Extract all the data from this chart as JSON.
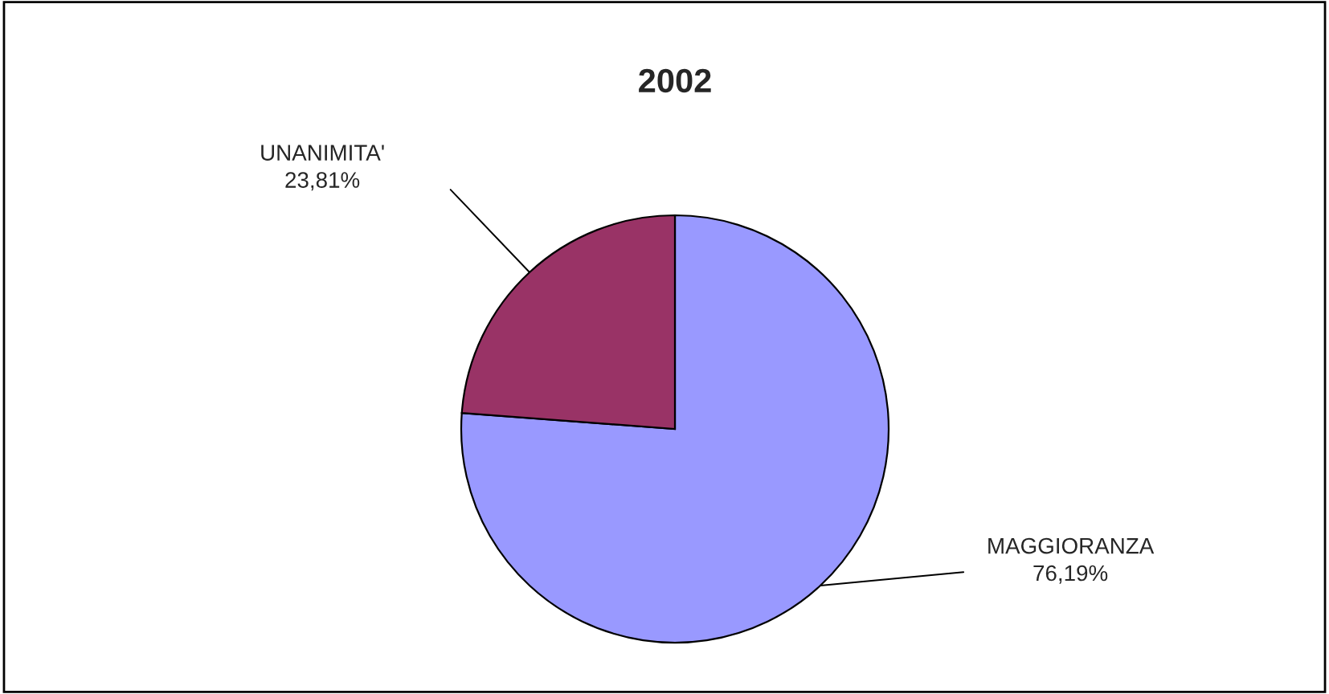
{
  "chart_data": {
    "type": "pie",
    "title": "2002",
    "categories": [
      "MAGGIORANZA",
      "UNANIMITA'"
    ],
    "values": [
      76.19,
      23.81
    ],
    "colors": [
      "#9999ff",
      "#993366"
    ],
    "value_labels": [
      "76,19%",
      "23,81%"
    ],
    "legend": false
  }
}
